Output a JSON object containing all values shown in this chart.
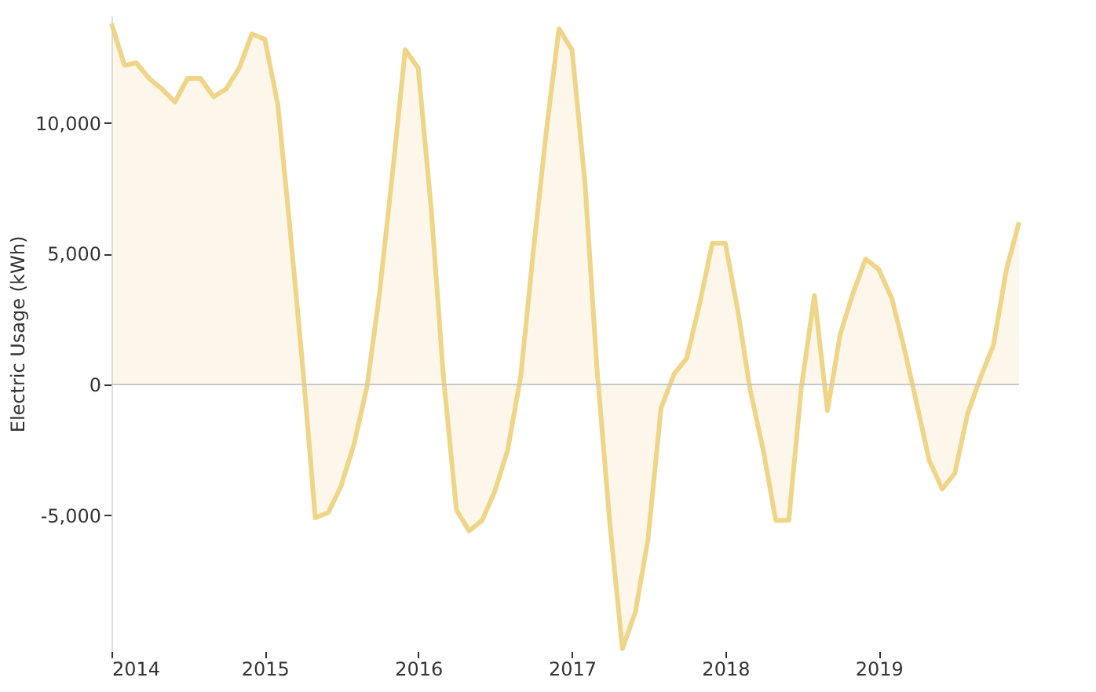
{
  "chart_data": {
    "type": "area",
    "ylabel": "Electric Usage (kWh)",
    "x": [
      "2014-01",
      "2014-02",
      "2014-03",
      "2014-04",
      "2014-05",
      "2014-06",
      "2014-07",
      "2014-08",
      "2014-09",
      "2014-10",
      "2014-11",
      "2014-12",
      "2015-01",
      "2015-02",
      "2015-03",
      "2015-04",
      "2015-05",
      "2015-06",
      "2015-07",
      "2015-08",
      "2015-09",
      "2015-10",
      "2015-11",
      "2015-12",
      "2016-01",
      "2016-02",
      "2016-03",
      "2016-04",
      "2016-05",
      "2016-06",
      "2016-07",
      "2016-08",
      "2016-09",
      "2016-10",
      "2016-11",
      "2016-12",
      "2017-01",
      "2017-02",
      "2017-03",
      "2017-04",
      "2017-05",
      "2017-06",
      "2017-07",
      "2017-08",
      "2017-09",
      "2017-10",
      "2017-11",
      "2017-12",
      "2018-01",
      "2018-02",
      "2018-03",
      "2018-04",
      "2018-05",
      "2018-06",
      "2018-07",
      "2018-08",
      "2018-09",
      "2018-10",
      "2018-11",
      "2018-12",
      "2019-01",
      "2019-02",
      "2019-03",
      "2019-04",
      "2019-05",
      "2019-06",
      "2019-07",
      "2019-08",
      "2019-09",
      "2019-10",
      "2019-11",
      "2019-12"
    ],
    "series": [
      {
        "color": "#efd588",
        "values": [
          13800,
          12200,
          12300,
          11700,
          11300,
          10800,
          11700,
          11700,
          11000,
          11300,
          12100,
          13400,
          13200,
          10700,
          6100,
          700,
          -5100,
          -4900,
          -3900,
          -2300,
          -100,
          3500,
          8100,
          12800,
          12100,
          6700,
          300,
          -4800,
          -5600,
          -5200,
          -4100,
          -2500,
          300,
          5100,
          9700,
          13600,
          12800,
          7700,
          700,
          -5300,
          -10100,
          -8700,
          -5900,
          -900,
          400,
          1000,
          3100,
          5400,
          5400,
          2700,
          -200,
          -2500,
          -5200,
          -5200,
          -100,
          3400,
          -1000,
          1900,
          3500,
          4800,
          4400,
          3300,
          1500,
          -700,
          -2900,
          -4000,
          -3400,
          -1100,
          300,
          1500,
          4400,
          6200
        ]
      }
    ],
    "ylim": [
      -10200,
      14100
    ],
    "yticks": [
      {
        "value": -5000,
        "label": "-5,000"
      },
      {
        "value": 0,
        "label": "0"
      },
      {
        "value": 5000,
        "label": "5,000"
      },
      {
        "value": 10000,
        "label": "10,000"
      }
    ],
    "xlim": [
      "2014-01",
      "2019-12"
    ],
    "xticks": [
      "2014",
      "2015",
      "2016",
      "2017",
      "2018",
      "2019"
    ],
    "ref_lines": [
      {
        "axis": "y",
        "value": 0,
        "color": "#c8c8c8"
      }
    ],
    "grid": false
  }
}
